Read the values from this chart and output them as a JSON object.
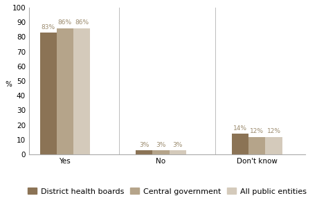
{
  "categories": [
    "Yes",
    "No",
    "Don't know"
  ],
  "series": {
    "District health boards": [
      83,
      3,
      14
    ],
    "Central government": [
      86,
      3,
      12
    ],
    "All public entities": [
      86,
      3,
      12
    ]
  },
  "colors": {
    "District health boards": "#8B7355",
    "Central government": "#B5A48A",
    "All public entities": "#D4CABB"
  },
  "annotation_color": "#9B8B6E",
  "ylabel": "%",
  "ylim": [
    0,
    100
  ],
  "yticks": [
    0,
    10,
    20,
    30,
    40,
    50,
    60,
    70,
    80,
    90,
    100
  ],
  "legend_labels": [
    "District health boards",
    "Central government",
    "All public entities"
  ],
  "background_color": "#ffffff",
  "tick_fontsize": 7.5,
  "legend_fontsize": 8
}
